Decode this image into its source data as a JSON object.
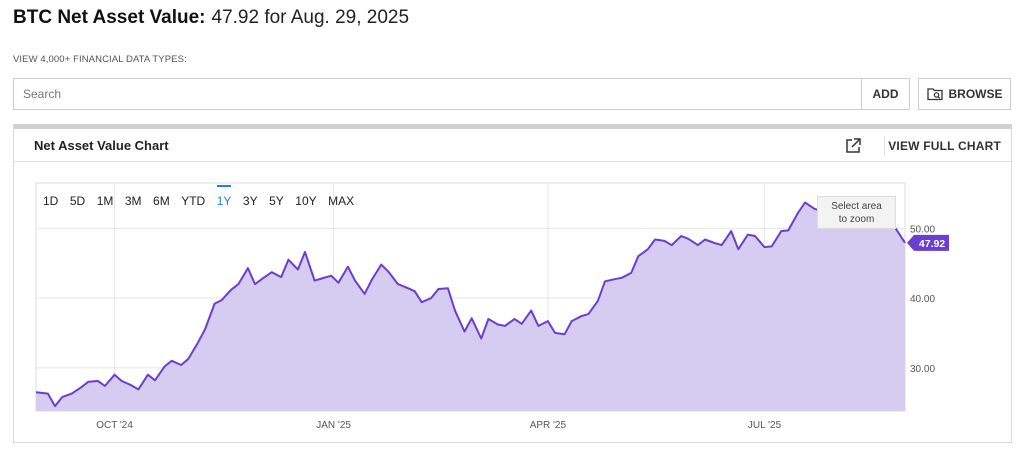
{
  "header": {
    "title_bold": "BTC Net Asset Value:",
    "title_value": "47.92 for Aug. 29, 2025"
  },
  "search": {
    "caption": "VIEW 4,000+ FINANCIAL DATA TYPES:",
    "placeholder": "Search",
    "add_label": "ADD",
    "browse_label": "BROWSE"
  },
  "icons": {
    "browse": "folder-search-icon",
    "external": "external-link-icon"
  },
  "panel": {
    "title": "Net Asset Value Chart",
    "view_full_label": "VIEW FULL CHART"
  },
  "range_buttons": [
    "1D",
    "5D",
    "1M",
    "3M",
    "6M",
    "YTD",
    "1Y",
    "3Y",
    "5Y",
    "10Y",
    "MAX"
  ],
  "active_range": "1Y",
  "zoom_hint": [
    "Select area",
    "to zoom"
  ],
  "colors": {
    "line": "#6a3fd0",
    "area": "#d6ccf2",
    "active": "#2a7de1",
    "badge": "#6a3fd0"
  },
  "chart_data": {
    "type": "area",
    "x_ticks": [
      "OCT '24",
      "JAN '25",
      "APR '25",
      "JUL '25"
    ],
    "y_ticks": [
      "30.00",
      "40.00",
      "50.00"
    ],
    "ylim": [
      23.8,
      56.5
    ],
    "xlim": [
      "2024-08-29",
      "2025-08-29"
    ],
    "last_value_label": "47.92",
    "grid": true,
    "series": [
      {
        "x": [
          "2024-08-29",
          "2024-09-03",
          "2024-09-06",
          "2024-09-09",
          "2024-09-13",
          "2024-09-17",
          "2024-09-20",
          "2024-09-24",
          "2024-09-27",
          "2024-10-01",
          "2024-10-04",
          "2024-10-08",
          "2024-10-11",
          "2024-10-15",
          "2024-10-18",
          "2024-10-22",
          "2024-10-25",
          "2024-10-29",
          "2024-11-01",
          "2024-11-05",
          "2024-11-08",
          "2024-11-12",
          "2024-11-15",
          "2024-11-19",
          "2024-11-22",
          "2024-11-26",
          "2024-11-29",
          "2024-12-03",
          "2024-12-06",
          "2024-12-10",
          "2024-12-13",
          "2024-12-17",
          "2024-12-20",
          "2024-12-24",
          "2024-12-27",
          "2024-12-31",
          "2025-01-03",
          "2025-01-07",
          "2025-01-10",
          "2025-01-14",
          "2025-01-17",
          "2025-01-21",
          "2025-01-24",
          "2025-01-28",
          "2025-01-31",
          "2025-02-04",
          "2025-02-07",
          "2025-02-11",
          "2025-02-14",
          "2025-02-18",
          "2025-02-21",
          "2025-02-25",
          "2025-02-28",
          "2025-03-04",
          "2025-03-07",
          "2025-03-11",
          "2025-03-14",
          "2025-03-18",
          "2025-03-21",
          "2025-03-25",
          "2025-03-28",
          "2025-04-01",
          "2025-04-04",
          "2025-04-08",
          "2025-04-11",
          "2025-04-15",
          "2025-04-18",
          "2025-04-22",
          "2025-04-25",
          "2025-04-29",
          "2025-05-02",
          "2025-05-06",
          "2025-05-09",
          "2025-05-13",
          "2025-05-16",
          "2025-05-20",
          "2025-05-23",
          "2025-05-27",
          "2025-05-30",
          "2025-06-03",
          "2025-06-06",
          "2025-06-10",
          "2025-06-13",
          "2025-06-17",
          "2025-06-20",
          "2025-06-24",
          "2025-06-27",
          "2025-07-01",
          "2025-07-04",
          "2025-07-08",
          "2025-07-11",
          "2025-07-15",
          "2025-07-18",
          "2025-07-22",
          "2025-07-25",
          "2025-07-29",
          "2025-08-01",
          "2025-08-05",
          "2025-08-08",
          "2025-08-12",
          "2025-08-15",
          "2025-08-19",
          "2025-08-22",
          "2025-08-26",
          "2025-08-29"
        ],
        "values": [
          26.5,
          26.3,
          24.5,
          25.8,
          26.3,
          27.2,
          28.0,
          28.1,
          27.4,
          29.0,
          28.1,
          27.5,
          26.9,
          29.0,
          28.2,
          30.2,
          31.0,
          30.4,
          31.3,
          33.6,
          35.5,
          39.2,
          39.7,
          41.2,
          42.0,
          44.3,
          42.0,
          43.0,
          43.7,
          43.0,
          45.5,
          44.1,
          46.6,
          42.5,
          42.8,
          43.2,
          42.2,
          44.5,
          42.5,
          40.6,
          42.6,
          44.8,
          43.8,
          42.0,
          41.6,
          41.0,
          39.4,
          40.0,
          41.3,
          41.4,
          38.2,
          35.2,
          37.1,
          34.2,
          37.0,
          36.2,
          36.0,
          37.0,
          36.3,
          38.2,
          36.0,
          36.7,
          35.0,
          34.8,
          36.7,
          37.4,
          37.7,
          39.6,
          42.4,
          42.7,
          42.9,
          43.6,
          46.0,
          47.0,
          48.4,
          48.2,
          47.6,
          48.9,
          48.5,
          47.6,
          48.4,
          47.9,
          47.6,
          49.6,
          47.0,
          49.1,
          48.9,
          47.3,
          47.4,
          49.6,
          49.7,
          52.2,
          53.7,
          52.8,
          52.5,
          52.8,
          51.3,
          50.2,
          51.5,
          53.0,
          53.9,
          51.0,
          51.5,
          49.5,
          47.92
        ]
      }
    ]
  }
}
